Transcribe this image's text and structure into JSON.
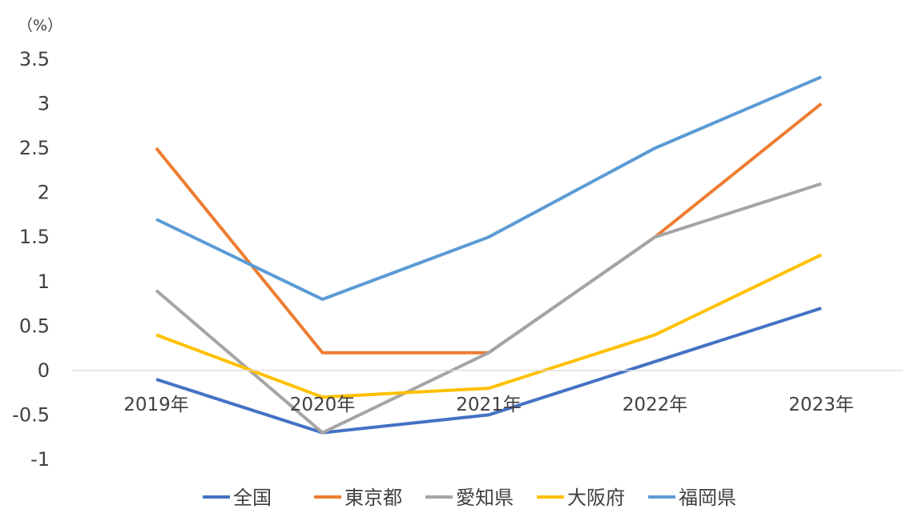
{
  "chart_data": {
    "type": "line",
    "unit_label": "（%）",
    "categories": [
      "2019年",
      "2020年",
      "2021年",
      "2022年",
      "2023年"
    ],
    "y_ticks": [
      "3.5",
      "3",
      "2.5",
      "2",
      "1.5",
      "1",
      "0.5",
      "0",
      "-0.5",
      "-1"
    ],
    "ylim": [
      -1,
      3.5
    ],
    "grid": false,
    "legend_position": "bottom",
    "series": [
      {
        "name": "全国",
        "color": "#4472C4",
        "values": [
          -0.1,
          -0.7,
          -0.5,
          0.1,
          0.7
        ]
      },
      {
        "name": "東京都",
        "color": "#ED7D31",
        "values": [
          2.5,
          0.2,
          0.2,
          1.5,
          3.0
        ]
      },
      {
        "name": "愛知県",
        "color": "#A5A5A5",
        "values": [
          0.9,
          -0.7,
          0.2,
          1.5,
          2.1
        ]
      },
      {
        "name": "大阪府",
        "color": "#FFC000",
        "values": [
          0.4,
          -0.3,
          -0.2,
          0.4,
          1.3
        ]
      },
      {
        "name": "福岡県",
        "color": "#5B9BD5",
        "values": [
          1.7,
          0.8,
          1.5,
          2.5,
          3.3
        ]
      }
    ]
  }
}
